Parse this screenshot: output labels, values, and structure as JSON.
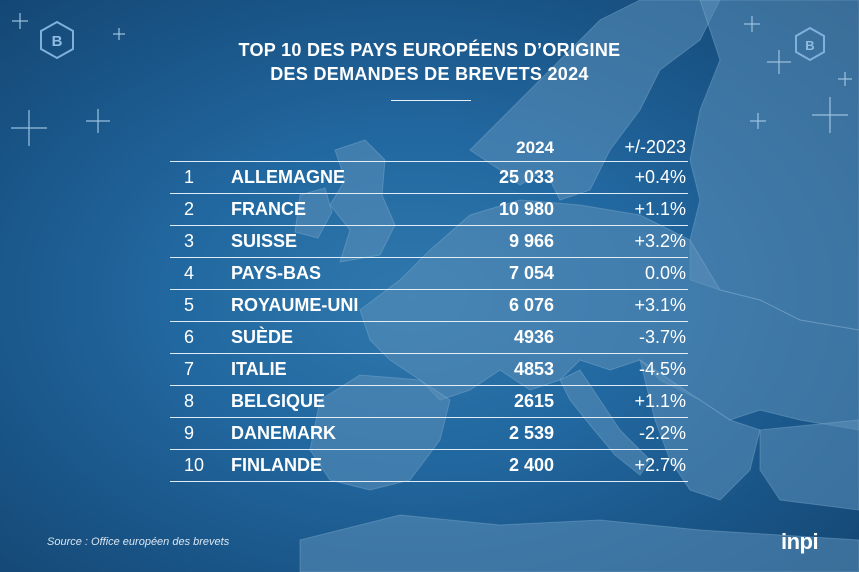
{
  "title": {
    "line1": "TOP 10 DES PAYS EUROPÉENS D’ORIGINE",
    "line2": "DES DEMANDES DE BREVETS 2024"
  },
  "table": {
    "headers": {
      "year": "2024",
      "variation": "+/-2023"
    },
    "rows": [
      {
        "rank": "1",
        "country": "ALLEMAGNE",
        "value": "25 033",
        "variation": "+0.4%"
      },
      {
        "rank": "2",
        "country": "FRANCE",
        "value": "10 980",
        "variation": "+1.1%"
      },
      {
        "rank": "3",
        "country": "SUISSE",
        "value": "9 966",
        "variation": "+3.2%"
      },
      {
        "rank": "4",
        "country": "PAYS-BAS",
        "value": "7 054",
        "variation": "0.0%"
      },
      {
        "rank": "5",
        "country": "ROYAUME-UNI",
        "value": "6 076",
        "variation": "+3.1%"
      },
      {
        "rank": "6",
        "country": "SUÈDE",
        "value": "4936",
        "variation": "-3.7%"
      },
      {
        "rank": "7",
        "country": "ITALIE",
        "value": "4853",
        "variation": "-4.5%"
      },
      {
        "rank": "8",
        "country": "BELGIQUE",
        "value": "2615",
        "variation": "+1.1%"
      },
      {
        "rank": "9",
        "country": "DANEMARK",
        "value": "2 539",
        "variation": "-2.2%"
      },
      {
        "rank": "10",
        "country": "FINLANDE",
        "value": "2 400",
        "variation": "+2.7%"
      }
    ]
  },
  "source": "Source : Office européen des brevets",
  "logo": "inpi",
  "badge_letter": "B",
  "colors": {
    "background": "#2268a0",
    "land": "#5f93bd",
    "text": "#ffffff"
  }
}
